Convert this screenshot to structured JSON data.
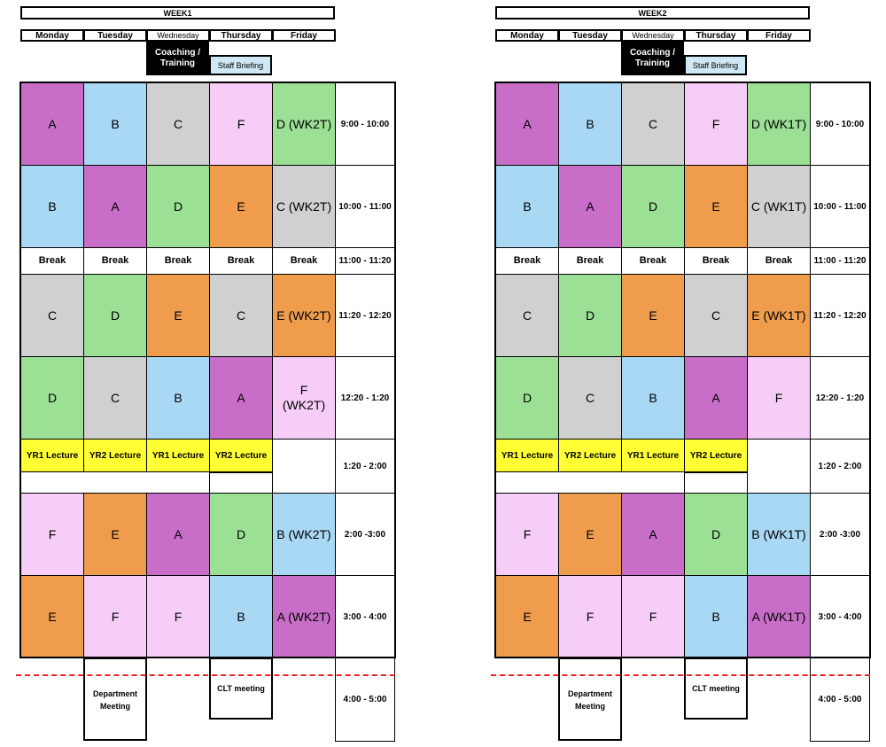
{
  "colors": {
    "A": "#c86ec8",
    "B": "#a8d8f4",
    "C": "#d0d0d0",
    "D": "#9be095",
    "E": "#ef9d4c",
    "F": "#f6cdf6",
    "lecture": "#ffff33",
    "staff_briefing": "#cfe8f5",
    "dashed_line": "#e8232a"
  },
  "days": [
    "Monday",
    "Tuesday",
    "Wednesday",
    "Thursday",
    "Friday"
  ],
  "coaching_label": "Coaching / Training",
  "staff_briefing": "Staff Briefing",
  "times": [
    "9:00 - 10:00",
    "10:00 - 11:00",
    "11:00 - 11:20",
    "11:20 - 12:20",
    "12:20 - 1:20",
    "1:20 - 2:00",
    "2:00 -3:00",
    "3:00 - 4:00",
    "4:00 - 5:00"
  ],
  "break_label": "Break",
  "lectures": [
    "YR1 Lecture",
    "YR2 Lecture",
    "YR1 Lecture",
    "YR2 Lecture"
  ],
  "department_meeting": "Department Meeting",
  "clt_meeting": "CLT meeting",
  "weeks": [
    {
      "title": "WEEK1",
      "rows": {
        "r1": [
          "A",
          "B",
          "C",
          "F",
          "D (WK2T)"
        ],
        "r2": [
          "B",
          "A",
          "D",
          "E",
          "C (WK2T)"
        ],
        "r3": [
          "C",
          "D",
          "E",
          "C",
          "E (WK2T)"
        ],
        "r4": [
          "D",
          "C",
          "B",
          "A",
          "F (WK2T)"
        ],
        "r5": [
          "F",
          "E",
          "A",
          "D",
          "B (WK2T)"
        ],
        "r6": [
          "E",
          "F",
          "F",
          "B",
          "A (WK2T)"
        ]
      }
    },
    {
      "title": "WEEK2",
      "rows": {
        "r1": [
          "A",
          "B",
          "C",
          "F",
          "D (WK1T)"
        ],
        "r2": [
          "B",
          "A",
          "D",
          "E",
          "C (WK1T)"
        ],
        "r3": [
          "C",
          "D",
          "E",
          "C",
          "E (WK1T)"
        ],
        "r4": [
          "D",
          "C",
          "B",
          "A",
          "F"
        ],
        "r5": [
          "F",
          "E",
          "A",
          "D",
          "B (WK1T)"
        ],
        "r6": [
          "E",
          "F",
          "F",
          "B",
          "A (WK1T)"
        ]
      }
    }
  ]
}
